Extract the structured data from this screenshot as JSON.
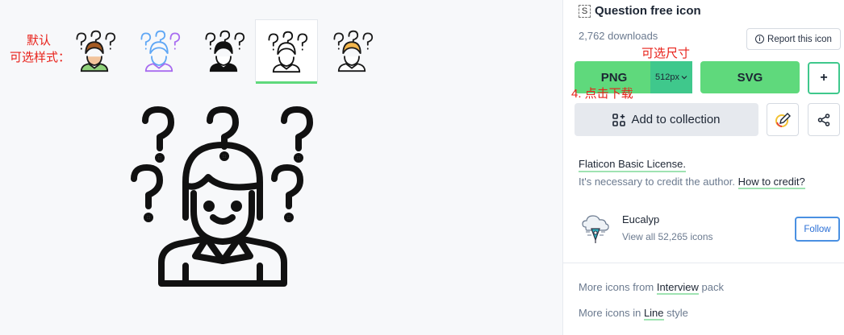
{
  "annotations": {
    "default_label_line1": "默认",
    "default_label_line2": "可选样式：",
    "size_label": "可选尺寸",
    "step_label": "4. 点击下载"
  },
  "styles": [
    {
      "name": "lineal-color",
      "icon": "question-person-lineal-color-icon",
      "hair": "#a55a22",
      "shirt": "#8fd17a",
      "active": false
    },
    {
      "name": "gradient",
      "icon": "question-person-gradient-icon",
      "stroke": "#5fa7f5",
      "accent": "#a86cf0",
      "active": false
    },
    {
      "name": "glyph",
      "icon": "question-person-glyph-icon",
      "active": false
    },
    {
      "name": "line",
      "icon": "question-person-line-icon",
      "active": true
    },
    {
      "name": "flat",
      "icon": "question-person-flat-icon",
      "hair": "#f3b64d",
      "active": false
    }
  ],
  "panel": {
    "title_badge": "S",
    "title": "Question free icon",
    "downloads": "2,762 downloads",
    "report": "Report this icon",
    "png": "PNG",
    "size": "512px",
    "svg": "SVG",
    "plus": "+",
    "add_collection": "Add to collection",
    "license": "Flaticon Basic License.",
    "credit_text": "It's necessary to credit the author.",
    "credit_link": "How to credit?",
    "author": "Eucalyp",
    "author_sub": "View all 52,265 icons",
    "follow": "Follow",
    "more_pack_prefix": "More icons from",
    "more_pack_link": "Interview",
    "more_pack_suffix": "pack",
    "more_style_prefix": "More icons in",
    "more_style_link": "Line",
    "more_style_suffix": "style"
  },
  "colors": {
    "accent_green": "#5fd97c",
    "annotation_red": "#e8211a",
    "follow_blue": "#2a6fd6"
  }
}
